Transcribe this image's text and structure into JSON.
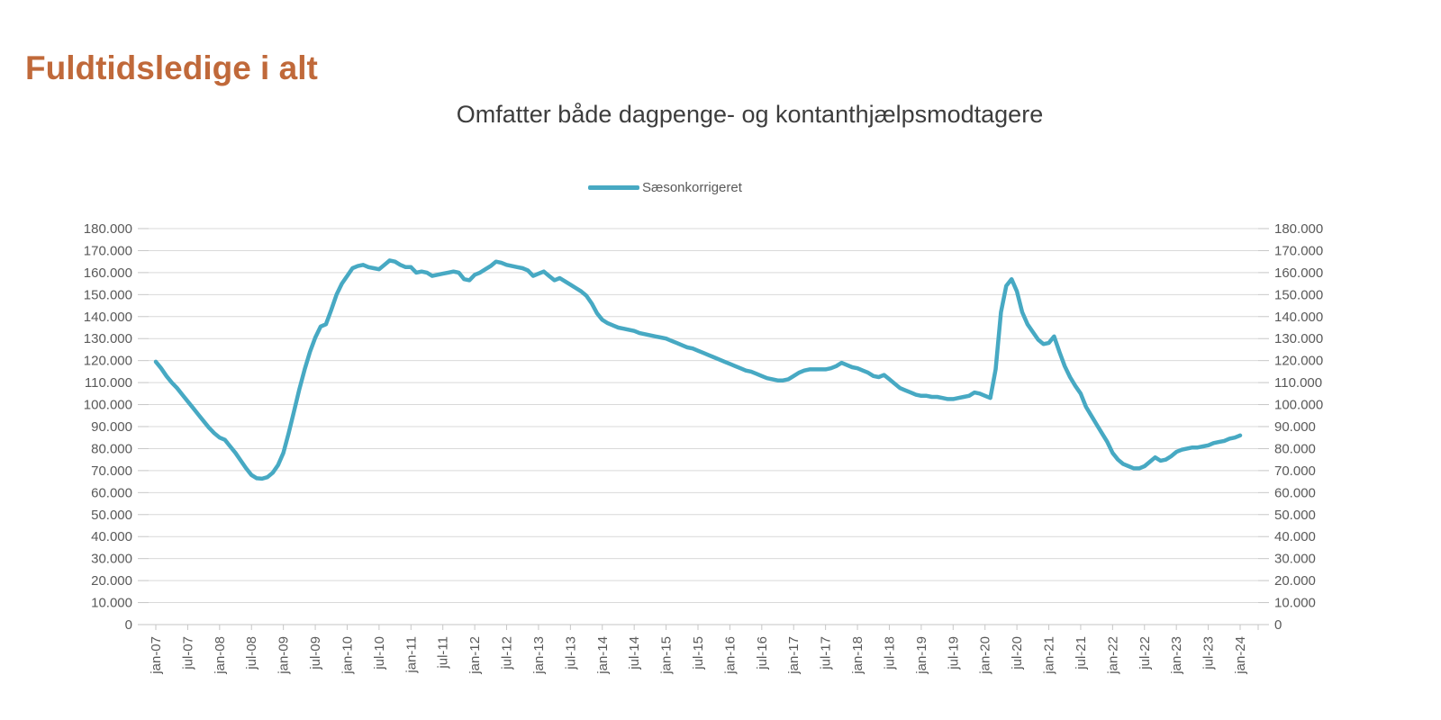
{
  "header": {
    "title": "Fuldtidsledige i alt",
    "title_color": "#c0693a"
  },
  "chart": {
    "subtitle": "Omfatter både dagpenge- og kontanthjælpsmodtagere",
    "legend_label": "Sæsonkorrigeret",
    "colors": {
      "line": "#47a9c3",
      "gridline": "#d9d9d9",
      "axis": "#c6c6c6",
      "tick_label": "#595959"
    }
  },
  "chart_data": {
    "type": "line",
    "title": "Omfatter både dagpenge- og kontanthjælpsmodtagere",
    "legend_entries": [
      "Sæsonkorrigeret"
    ],
    "legend_position": "top-center",
    "grid": "horizontal",
    "ylim": [
      0,
      180000
    ],
    "y_tick_step": 10000,
    "y_tick_format": "danish dot thousands separator",
    "x_unit": "month",
    "x_start": "jan-07",
    "x_end": "jan-24",
    "x_tick_every_months": 6,
    "x_tick_labels": [
      "jan-07",
      "jul-07",
      "jan-08",
      "jul-08",
      "jan-09",
      "jul-09",
      "jan-10",
      "jul-10",
      "jan-11",
      "jul-11",
      "jan-12",
      "jul-12",
      "jan-13",
      "jul-13",
      "jan-14",
      "jul-14",
      "jan-15",
      "jul-15",
      "jan-16",
      "jul-16",
      "jan-17",
      "jul-17",
      "jan-18",
      "jul-18",
      "jan-19",
      "jul-19",
      "jan-20",
      "jul-20",
      "jan-21",
      "jul-21",
      "jan-22",
      "jul-22",
      "jan-23",
      "jul-23",
      "jan-24"
    ],
    "series": [
      {
        "name": "Sæsonkorrigeret",
        "values": [
          119500,
          116500,
          113000,
          110000,
          107500,
          104500,
          101500,
          98500,
          95500,
          92500,
          89500,
          87000,
          85000,
          84000,
          81000,
          78000,
          74500,
          71000,
          68000,
          66500,
          66300,
          67000,
          69000,
          72500,
          78000,
          87000,
          97000,
          107000,
          116000,
          124000,
          130500,
          135500,
          136500,
          143000,
          150000,
          155000,
          158500,
          162000,
          163000,
          163500,
          162500,
          162000,
          161500,
          163500,
          165500,
          165000,
          163500,
          162500,
          162500,
          160000,
          160500,
          160000,
          158500,
          159000,
          159500,
          160000,
          160500,
          160000,
          157000,
          156500,
          159000,
          160000,
          161500,
          163000,
          165000,
          164500,
          163500,
          163000,
          162500,
          162000,
          161000,
          158500,
          159500,
          160500,
          158500,
          156500,
          157500,
          156000,
          154500,
          153000,
          151500,
          149500,
          146000,
          141500,
          138500,
          137000,
          136000,
          135000,
          134500,
          134000,
          133500,
          132500,
          132000,
          131500,
          131000,
          130500,
          130000,
          129000,
          128000,
          127000,
          126000,
          125500,
          124500,
          123500,
          122500,
          121500,
          120500,
          119500,
          118500,
          117500,
          116500,
          115500,
          115000,
          114000,
          113000,
          112000,
          111500,
          111000,
          111000,
          111500,
          113000,
          114500,
          115500,
          116000,
          116000,
          116000,
          116000,
          116500,
          117500,
          119000,
          118000,
          117000,
          116500,
          115500,
          114500,
          113000,
          112500,
          113500,
          111500,
          109500,
          107500,
          106500,
          105500,
          104500,
          104000,
          104000,
          103500,
          103500,
          103000,
          102500,
          102500,
          103000,
          103500,
          104000,
          105500,
          105000,
          104000,
          103000,
          116000,
          142000,
          154000,
          157000,
          151500,
          142000,
          136500,
          133000,
          129500,
          127500,
          128000,
          131000,
          124000,
          117500,
          112500,
          108500,
          105000,
          99000,
          95000,
          91000,
          87000,
          83000,
          78000,
          75000,
          73000,
          72000,
          71000,
          71000,
          72000,
          74000,
          76000,
          74500,
          75000,
          76500,
          78500,
          79500,
          80000,
          80500,
          80500,
          81000,
          81500,
          82500,
          83000,
          83500,
          84500,
          85000,
          86000
        ]
      }
    ]
  }
}
